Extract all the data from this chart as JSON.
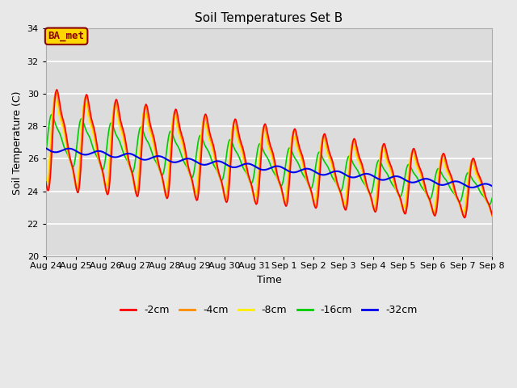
{
  "title": "Soil Temperatures Set B",
  "xlabel": "Time",
  "ylabel": "Soil Temperature (C)",
  "ylim": [
    20,
    34
  ],
  "yticks": [
    20,
    22,
    24,
    26,
    28,
    30,
    32,
    34
  ],
  "annotation": "BA_met",
  "annotation_color": "#8B0000",
  "annotation_bg": "#FFD700",
  "line_colors": {
    "-2cm": "#FF0000",
    "-4cm": "#FF8C00",
    "-8cm": "#FFEE00",
    "-16cm": "#00CC00",
    "-32cm": "#0000EE"
  },
  "background_color": "#E8E8E8",
  "plot_bg": "#DCDCDC",
  "grid_color": "#FFFFFF",
  "days": [
    "Aug 24",
    "Aug 25",
    "Aug 26",
    "Aug 27",
    "Aug 28",
    "Aug 29",
    "Aug 30",
    "Aug 31",
    "Sep 1",
    "Sep 2",
    "Sep 3",
    "Sep 4",
    "Sep 5",
    "Sep 6",
    "Sep 7",
    "Sep 8"
  ]
}
